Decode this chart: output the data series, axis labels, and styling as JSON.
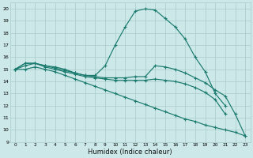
{
  "xlabel": "Humidex (Indice chaleur)",
  "xlim": [
    -0.5,
    23.5
  ],
  "ylim": [
    9,
    20.5
  ],
  "yticks": [
    9,
    10,
    11,
    12,
    13,
    14,
    15,
    16,
    17,
    18,
    19,
    20
  ],
  "xticks": [
    0,
    1,
    2,
    3,
    4,
    5,
    6,
    7,
    8,
    9,
    10,
    11,
    12,
    13,
    14,
    15,
    16,
    17,
    18,
    19,
    20,
    21,
    22,
    23
  ],
  "bg_color": "#cce8e8",
  "grid_color": "#aacccc",
  "line_color": "#1a7a6e",
  "lines": [
    {
      "x": [
        0,
        1,
        2,
        3,
        4,
        5,
        6,
        7,
        8,
        9,
        10,
        11,
        12,
        13,
        14,
        15,
        16,
        17,
        18,
        19,
        20,
        21
      ],
      "y": [
        15.0,
        15.5,
        15.5,
        15.3,
        15.2,
        15.0,
        14.7,
        14.5,
        14.5,
        15.3,
        17.0,
        18.5,
        19.8,
        20.0,
        19.9,
        19.2,
        18.5,
        17.5,
        16.0,
        14.8,
        13.0,
        12.0
      ]
    },
    {
      "x": [
        0,
        1,
        2,
        3,
        4,
        5,
        6,
        7,
        8,
        9,
        10,
        11,
        12,
        13,
        14,
        15,
        16,
        17,
        18,
        19,
        20,
        21,
        22,
        23
      ],
      "y": [
        15.0,
        15.5,
        15.5,
        15.3,
        15.1,
        14.9,
        14.7,
        14.5,
        14.4,
        14.3,
        14.3,
        14.3,
        14.4,
        14.4,
        15.3,
        15.2,
        15.0,
        14.7,
        14.3,
        13.9,
        13.3,
        12.8,
        11.3,
        9.5
      ]
    },
    {
      "x": [
        0,
        1,
        2,
        3,
        4,
        5,
        6,
        7,
        8,
        9,
        10,
        11,
        12,
        13,
        14,
        15,
        16,
        17,
        18,
        19,
        20,
        21
      ],
      "y": [
        15.0,
        15.3,
        15.5,
        15.2,
        15.0,
        14.8,
        14.6,
        14.4,
        14.3,
        14.2,
        14.1,
        14.1,
        14.1,
        14.1,
        14.2,
        14.1,
        14.0,
        13.8,
        13.5,
        13.1,
        12.5,
        11.3
      ]
    },
    {
      "x": [
        0,
        1,
        2,
        3,
        4,
        5,
        6,
        7,
        8,
        9,
        10,
        11,
        12,
        13,
        14,
        15,
        16,
        17,
        18,
        19,
        20,
        21,
        22,
        23
      ],
      "y": [
        15.0,
        15.0,
        15.2,
        15.0,
        14.8,
        14.5,
        14.2,
        13.9,
        13.6,
        13.3,
        13.0,
        12.7,
        12.4,
        12.1,
        11.8,
        11.5,
        11.2,
        10.9,
        10.7,
        10.4,
        10.2,
        10.0,
        9.8,
        9.5
      ]
    }
  ]
}
